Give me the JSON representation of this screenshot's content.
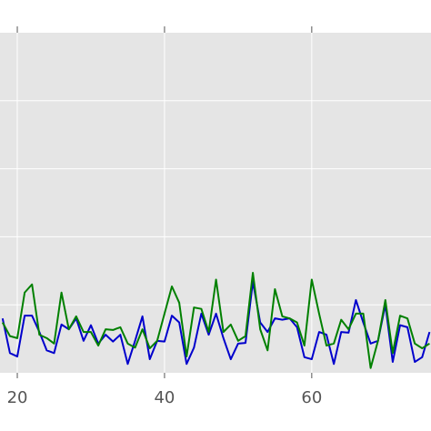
{
  "chart_data": {
    "type": "line",
    "x": [
      18,
      19,
      20,
      21,
      22,
      23,
      24,
      25,
      26,
      27,
      28,
      29,
      30,
      31,
      32,
      33,
      34,
      35,
      36,
      37,
      38,
      39,
      40,
      41,
      42,
      43,
      44,
      45,
      46,
      47,
      48,
      49,
      50,
      51,
      52,
      53,
      54,
      55,
      56,
      57,
      58,
      59,
      60,
      61,
      62,
      63,
      64,
      65,
      66,
      67,
      68,
      69,
      70,
      71,
      72,
      73,
      74,
      75,
      76
    ],
    "series": [
      {
        "name": "blue",
        "color": "#0000cc",
        "values": [
          0.8,
          0.29,
          0.24,
          0.84,
          0.84,
          0.6,
          0.33,
          0.29,
          0.71,
          0.64,
          0.8,
          0.47,
          0.7,
          0.43,
          0.56,
          0.46,
          0.56,
          0.13,
          0.47,
          0.83,
          0.2,
          0.47,
          0.46,
          0.84,
          0.74,
          0.13,
          0.37,
          0.87,
          0.56,
          0.87,
          0.51,
          0.2,
          0.43,
          0.44,
          1.34,
          0.74,
          0.6,
          0.8,
          0.78,
          0.8,
          0.67,
          0.23,
          0.2,
          0.6,
          0.56,
          0.13,
          0.6,
          0.59,
          1.07,
          0.74,
          0.43,
          0.47,
          1.0,
          0.16,
          0.7,
          0.67,
          0.16,
          0.23,
          0.6
        ]
      },
      {
        "name": "green",
        "color": "#008000",
        "values": [
          0.74,
          0.54,
          0.51,
          1.18,
          1.3,
          0.56,
          0.51,
          0.43,
          1.18,
          0.64,
          0.83,
          0.6,
          0.6,
          0.4,
          0.64,
          0.63,
          0.67,
          0.43,
          0.37,
          0.64,
          0.36,
          0.47,
          0.87,
          1.27,
          1.03,
          0.24,
          0.96,
          0.94,
          0.6,
          1.37,
          0.6,
          0.71,
          0.47,
          0.54,
          1.47,
          0.64,
          0.33,
          1.23,
          0.83,
          0.8,
          0.74,
          0.4,
          1.37,
          0.87,
          0.4,
          0.43,
          0.78,
          0.64,
          0.87,
          0.87,
          0.07,
          0.47,
          1.07,
          0.29,
          0.84,
          0.8,
          0.43,
          0.36,
          0.43
        ]
      }
    ],
    "xlim": [
      17.65,
      76.2
    ],
    "xticks": [
      20,
      40,
      60
    ],
    "ylim": [
      0,
      5
    ],
    "yticks": [
      1,
      2,
      3,
      4
    ],
    "grid": true
  }
}
